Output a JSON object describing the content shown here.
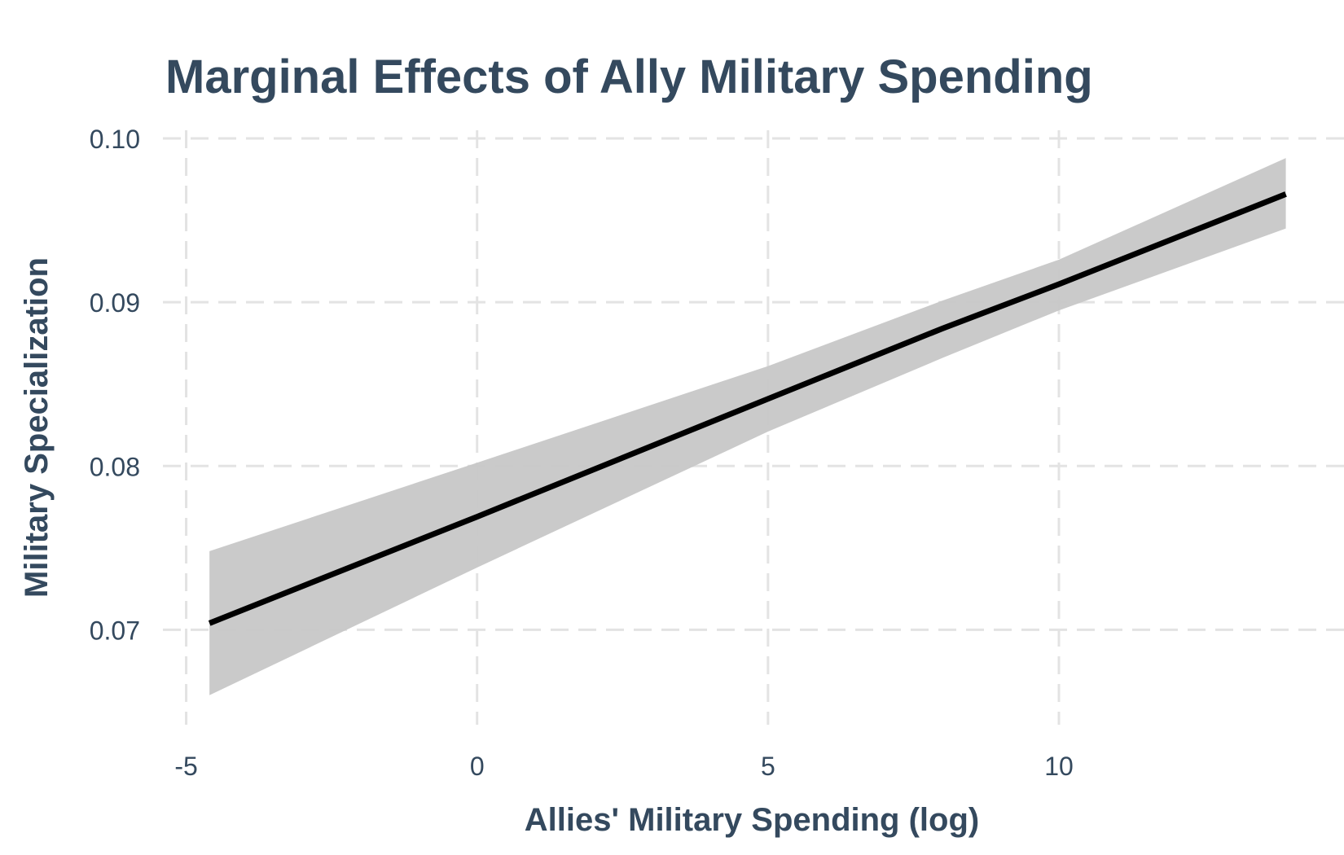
{
  "chart_data": {
    "type": "line",
    "title": "Marginal Effects of Ally Military Spending",
    "xlabel": "Allies' Military Spending (log)",
    "ylabel": "Military Specialization",
    "xlim": [
      -5.4,
      14.9
    ],
    "ylim": [
      0.0642,
      0.1005
    ],
    "x_ticks": [
      -5,
      0,
      5,
      10
    ],
    "x_tick_labels": [
      "-5",
      "0",
      "5",
      "10"
    ],
    "y_ticks": [
      0.07,
      0.08,
      0.09,
      0.1
    ],
    "y_tick_labels": [
      "0.07",
      "0.08",
      "0.09",
      "0.10"
    ],
    "grid": true,
    "series": [
      {
        "x": [
          -4.6,
          0,
          5,
          8,
          10,
          13.9
        ],
        "y": [
          0.0704,
          0.0769,
          0.0841,
          0.0884,
          0.0911,
          0.0966
        ],
        "lower": [
          0.066,
          0.0738,
          0.0821,
          0.0866,
          0.0895,
          0.0945
        ],
        "upper": [
          0.0748,
          0.0802,
          0.0861,
          0.0901,
          0.0926,
          0.0988
        ],
        "color": "#000000",
        "ribbon_color": "#c7c7c7"
      }
    ]
  }
}
